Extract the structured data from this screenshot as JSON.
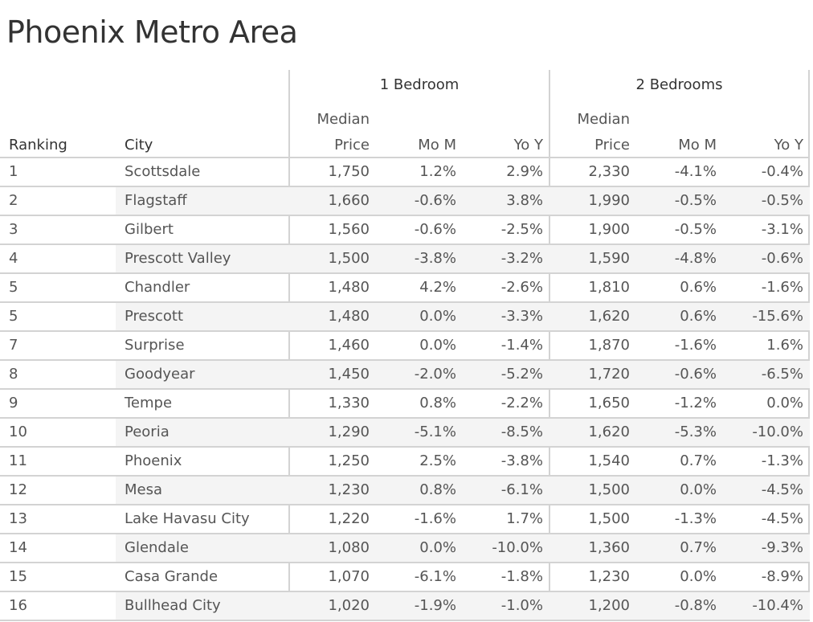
{
  "title": "Phoenix Metro Area",
  "groups": [
    {
      "label": "1 Bedroom"
    },
    {
      "label": "2 Bedrooms"
    }
  ],
  "headers": {
    "ranking": "Ranking",
    "city": "City",
    "median_line1": "Median",
    "median_line2": "Price",
    "mom": "Mo M",
    "yoy": "Yo Y"
  },
  "rows": [
    {
      "rank": "1",
      "city": "Scottsdale",
      "b1_price": "1,750",
      "b1_mom": "1.2%",
      "b1_yoy": "2.9%",
      "b2_price": "2,330",
      "b2_mom": "-4.1%",
      "b2_yoy": "-0.4%"
    },
    {
      "rank": "2",
      "city": "Flagstaff",
      "b1_price": "1,660",
      "b1_mom": "-0.6%",
      "b1_yoy": "3.8%",
      "b2_price": "1,990",
      "b2_mom": "-0.5%",
      "b2_yoy": "-0.5%"
    },
    {
      "rank": "3",
      "city": "Gilbert",
      "b1_price": "1,560",
      "b1_mom": "-0.6%",
      "b1_yoy": "-2.5%",
      "b2_price": "1,900",
      "b2_mom": "-0.5%",
      "b2_yoy": "-3.1%"
    },
    {
      "rank": "4",
      "city": "Prescott Valley",
      "b1_price": "1,500",
      "b1_mom": "-3.8%",
      "b1_yoy": "-3.2%",
      "b2_price": "1,590",
      "b2_mom": "-4.8%",
      "b2_yoy": "-0.6%"
    },
    {
      "rank": "5",
      "city": "Chandler",
      "b1_price": "1,480",
      "b1_mom": "4.2%",
      "b1_yoy": "-2.6%",
      "b2_price": "1,810",
      "b2_mom": "0.6%",
      "b2_yoy": "-1.6%"
    },
    {
      "rank": "5",
      "city": "Prescott",
      "b1_price": "1,480",
      "b1_mom": "0.0%",
      "b1_yoy": "-3.3%",
      "b2_price": "1,620",
      "b2_mom": "0.6%",
      "b2_yoy": "-15.6%"
    },
    {
      "rank": "7",
      "city": "Surprise",
      "b1_price": "1,460",
      "b1_mom": "0.0%",
      "b1_yoy": "-1.4%",
      "b2_price": "1,870",
      "b2_mom": "-1.6%",
      "b2_yoy": "1.6%"
    },
    {
      "rank": "8",
      "city": "Goodyear",
      "b1_price": "1,450",
      "b1_mom": "-2.0%",
      "b1_yoy": "-5.2%",
      "b2_price": "1,720",
      "b2_mom": "-0.6%",
      "b2_yoy": "-6.5%"
    },
    {
      "rank": "9",
      "city": "Tempe",
      "b1_price": "1,330",
      "b1_mom": "0.8%",
      "b1_yoy": "-2.2%",
      "b2_price": "1,650",
      "b2_mom": "-1.2%",
      "b2_yoy": "0.0%"
    },
    {
      "rank": "10",
      "city": "Peoria",
      "b1_price": "1,290",
      "b1_mom": "-5.1%",
      "b1_yoy": "-8.5%",
      "b2_price": "1,620",
      "b2_mom": "-5.3%",
      "b2_yoy": "-10.0%"
    },
    {
      "rank": "11",
      "city": "Phoenix",
      "b1_price": "1,250",
      "b1_mom": "2.5%",
      "b1_yoy": "-3.8%",
      "b2_price": "1,540",
      "b2_mom": "0.7%",
      "b2_yoy": "-1.3%"
    },
    {
      "rank": "12",
      "city": "Mesa",
      "b1_price": "1,230",
      "b1_mom": "0.8%",
      "b1_yoy": "-6.1%",
      "b2_price": "1,500",
      "b2_mom": "0.0%",
      "b2_yoy": "-4.5%"
    },
    {
      "rank": "13",
      "city": "Lake Havasu City",
      "b1_price": "1,220",
      "b1_mom": "-1.6%",
      "b1_yoy": "1.7%",
      "b2_price": "1,500",
      "b2_mom": "-1.3%",
      "b2_yoy": "-4.5%"
    },
    {
      "rank": "14",
      "city": "Glendale",
      "b1_price": "1,080",
      "b1_mom": "0.0%",
      "b1_yoy": "-10.0%",
      "b2_price": "1,360",
      "b2_mom": "0.7%",
      "b2_yoy": "-9.3%"
    },
    {
      "rank": "15",
      "city": "Casa Grande",
      "b1_price": "1,070",
      "b1_mom": "-6.1%",
      "b1_yoy": "-1.8%",
      "b2_price": "1,230",
      "b2_mom": "0.0%",
      "b2_yoy": "-8.9%"
    },
    {
      "rank": "16",
      "city": "Bullhead City",
      "b1_price": "1,020",
      "b1_mom": "-1.9%",
      "b1_yoy": "-1.0%",
      "b2_price": "1,200",
      "b2_mom": "-0.8%",
      "b2_yoy": "-10.4%"
    }
  ],
  "colors": {
    "text_dark": "#333333",
    "text_cell": "#555555",
    "grid": "#d3d3d3",
    "stripe": "#f4f4f4"
  }
}
